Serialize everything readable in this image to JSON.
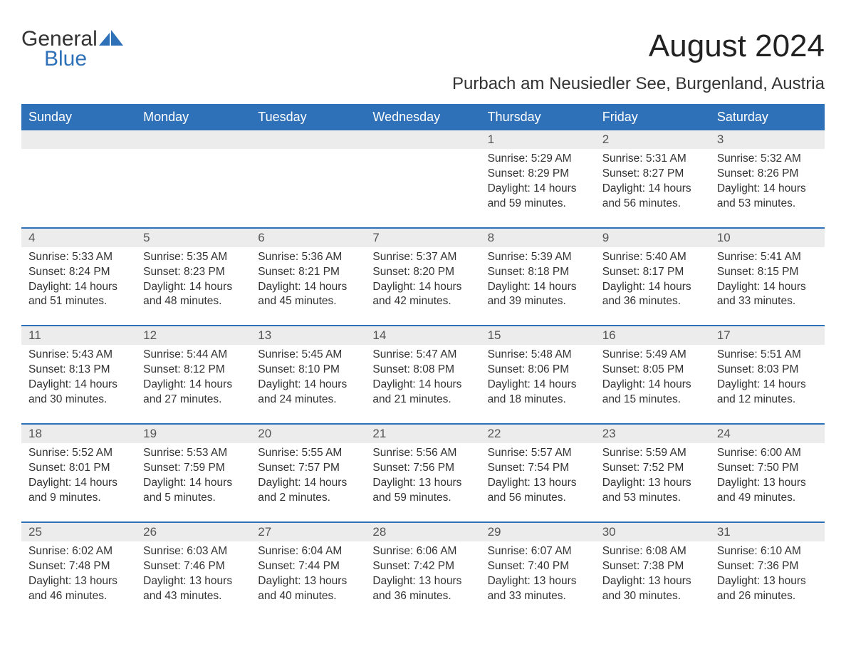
{
  "colors": {
    "header_bg": "#2f71b8",
    "header_text": "#ffffff",
    "daynum_bg": "#ececec",
    "daynum_text": "#555555",
    "body_text": "#333333",
    "week_border": "#2f71b8",
    "page_bg": "#ffffff",
    "logo_blue": "#2f71b8"
  },
  "logo": {
    "part1": "General",
    "part2": "Blue"
  },
  "title": "August 2024",
  "subtitle": "Purbach am Neusiedler See, Burgenland, Austria",
  "day_names": [
    "Sunday",
    "Monday",
    "Tuesday",
    "Wednesday",
    "Thursday",
    "Friday",
    "Saturday"
  ],
  "weeks": [
    {
      "nums": [
        "",
        "",
        "",
        "",
        "1",
        "2",
        "3"
      ],
      "cells": [
        {
          "sunrise": "",
          "sunset": "",
          "daylight": ""
        },
        {
          "sunrise": "",
          "sunset": "",
          "daylight": ""
        },
        {
          "sunrise": "",
          "sunset": "",
          "daylight": ""
        },
        {
          "sunrise": "",
          "sunset": "",
          "daylight": ""
        },
        {
          "sunrise": "Sunrise: 5:29 AM",
          "sunset": "Sunset: 8:29 PM",
          "daylight": "Daylight: 14 hours and 59 minutes."
        },
        {
          "sunrise": "Sunrise: 5:31 AM",
          "sunset": "Sunset: 8:27 PM",
          "daylight": "Daylight: 14 hours and 56 minutes."
        },
        {
          "sunrise": "Sunrise: 5:32 AM",
          "sunset": "Sunset: 8:26 PM",
          "daylight": "Daylight: 14 hours and 53 minutes."
        }
      ]
    },
    {
      "nums": [
        "4",
        "5",
        "6",
        "7",
        "8",
        "9",
        "10"
      ],
      "cells": [
        {
          "sunrise": "Sunrise: 5:33 AM",
          "sunset": "Sunset: 8:24 PM",
          "daylight": "Daylight: 14 hours and 51 minutes."
        },
        {
          "sunrise": "Sunrise: 5:35 AM",
          "sunset": "Sunset: 8:23 PM",
          "daylight": "Daylight: 14 hours and 48 minutes."
        },
        {
          "sunrise": "Sunrise: 5:36 AM",
          "sunset": "Sunset: 8:21 PM",
          "daylight": "Daylight: 14 hours and 45 minutes."
        },
        {
          "sunrise": "Sunrise: 5:37 AM",
          "sunset": "Sunset: 8:20 PM",
          "daylight": "Daylight: 14 hours and 42 minutes."
        },
        {
          "sunrise": "Sunrise: 5:39 AM",
          "sunset": "Sunset: 8:18 PM",
          "daylight": "Daylight: 14 hours and 39 minutes."
        },
        {
          "sunrise": "Sunrise: 5:40 AM",
          "sunset": "Sunset: 8:17 PM",
          "daylight": "Daylight: 14 hours and 36 minutes."
        },
        {
          "sunrise": "Sunrise: 5:41 AM",
          "sunset": "Sunset: 8:15 PM",
          "daylight": "Daylight: 14 hours and 33 minutes."
        }
      ]
    },
    {
      "nums": [
        "11",
        "12",
        "13",
        "14",
        "15",
        "16",
        "17"
      ],
      "cells": [
        {
          "sunrise": "Sunrise: 5:43 AM",
          "sunset": "Sunset: 8:13 PM",
          "daylight": "Daylight: 14 hours and 30 minutes."
        },
        {
          "sunrise": "Sunrise: 5:44 AM",
          "sunset": "Sunset: 8:12 PM",
          "daylight": "Daylight: 14 hours and 27 minutes."
        },
        {
          "sunrise": "Sunrise: 5:45 AM",
          "sunset": "Sunset: 8:10 PM",
          "daylight": "Daylight: 14 hours and 24 minutes."
        },
        {
          "sunrise": "Sunrise: 5:47 AM",
          "sunset": "Sunset: 8:08 PM",
          "daylight": "Daylight: 14 hours and 21 minutes."
        },
        {
          "sunrise": "Sunrise: 5:48 AM",
          "sunset": "Sunset: 8:06 PM",
          "daylight": "Daylight: 14 hours and 18 minutes."
        },
        {
          "sunrise": "Sunrise: 5:49 AM",
          "sunset": "Sunset: 8:05 PM",
          "daylight": "Daylight: 14 hours and 15 minutes."
        },
        {
          "sunrise": "Sunrise: 5:51 AM",
          "sunset": "Sunset: 8:03 PM",
          "daylight": "Daylight: 14 hours and 12 minutes."
        }
      ]
    },
    {
      "nums": [
        "18",
        "19",
        "20",
        "21",
        "22",
        "23",
        "24"
      ],
      "cells": [
        {
          "sunrise": "Sunrise: 5:52 AM",
          "sunset": "Sunset: 8:01 PM",
          "daylight": "Daylight: 14 hours and 9 minutes."
        },
        {
          "sunrise": "Sunrise: 5:53 AM",
          "sunset": "Sunset: 7:59 PM",
          "daylight": "Daylight: 14 hours and 5 minutes."
        },
        {
          "sunrise": "Sunrise: 5:55 AM",
          "sunset": "Sunset: 7:57 PM",
          "daylight": "Daylight: 14 hours and 2 minutes."
        },
        {
          "sunrise": "Sunrise: 5:56 AM",
          "sunset": "Sunset: 7:56 PM",
          "daylight": "Daylight: 13 hours and 59 minutes."
        },
        {
          "sunrise": "Sunrise: 5:57 AM",
          "sunset": "Sunset: 7:54 PM",
          "daylight": "Daylight: 13 hours and 56 minutes."
        },
        {
          "sunrise": "Sunrise: 5:59 AM",
          "sunset": "Sunset: 7:52 PM",
          "daylight": "Daylight: 13 hours and 53 minutes."
        },
        {
          "sunrise": "Sunrise: 6:00 AM",
          "sunset": "Sunset: 7:50 PM",
          "daylight": "Daylight: 13 hours and 49 minutes."
        }
      ]
    },
    {
      "nums": [
        "25",
        "26",
        "27",
        "28",
        "29",
        "30",
        "31"
      ],
      "cells": [
        {
          "sunrise": "Sunrise: 6:02 AM",
          "sunset": "Sunset: 7:48 PM",
          "daylight": "Daylight: 13 hours and 46 minutes."
        },
        {
          "sunrise": "Sunrise: 6:03 AM",
          "sunset": "Sunset: 7:46 PM",
          "daylight": "Daylight: 13 hours and 43 minutes."
        },
        {
          "sunrise": "Sunrise: 6:04 AM",
          "sunset": "Sunset: 7:44 PM",
          "daylight": "Daylight: 13 hours and 40 minutes."
        },
        {
          "sunrise": "Sunrise: 6:06 AM",
          "sunset": "Sunset: 7:42 PM",
          "daylight": "Daylight: 13 hours and 36 minutes."
        },
        {
          "sunrise": "Sunrise: 6:07 AM",
          "sunset": "Sunset: 7:40 PM",
          "daylight": "Daylight: 13 hours and 33 minutes."
        },
        {
          "sunrise": "Sunrise: 6:08 AM",
          "sunset": "Sunset: 7:38 PM",
          "daylight": "Daylight: 13 hours and 30 minutes."
        },
        {
          "sunrise": "Sunrise: 6:10 AM",
          "sunset": "Sunset: 7:36 PM",
          "daylight": "Daylight: 13 hours and 26 minutes."
        }
      ]
    }
  ]
}
